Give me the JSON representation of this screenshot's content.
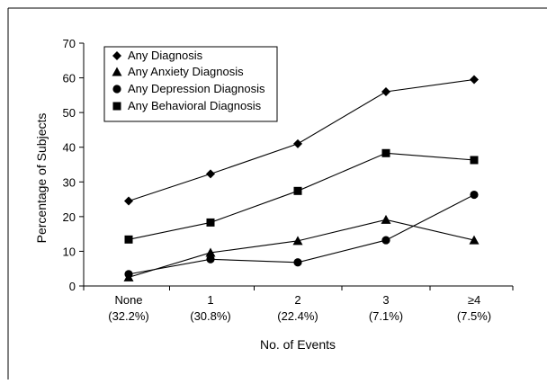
{
  "chart_data": {
    "type": "line",
    "title": "",
    "xlabel": "No. of Events",
    "ylabel": "Percentage of Subjects",
    "ylim": [
      0,
      70
    ],
    "yticks": [
      "0",
      "10",
      "20",
      "30",
      "40",
      "50",
      "60",
      "70"
    ],
    "categories": [
      {
        "name": "None",
        "pct": "(32.2%)"
      },
      {
        "name": "1",
        "pct": "(30.8%)"
      },
      {
        "name": "2",
        "pct": "(22.4%)"
      },
      {
        "name": "3",
        "pct": "(7.1%)"
      },
      {
        "name": "≥4",
        "pct": "(7.5%)"
      }
    ],
    "series": [
      {
        "name": "Any Diagnosis",
        "marker": "diamond",
        "values": [
          24.5,
          32.3,
          41,
          56,
          59.5
        ]
      },
      {
        "name": "Any Anxiety Diagnosis",
        "marker": "triangle",
        "values": [
          2.5,
          9.6,
          13,
          19.1,
          13.2
        ]
      },
      {
        "name": "Any Depression Diagnosis",
        "marker": "circle",
        "values": [
          3.4,
          7.7,
          6.8,
          13.2,
          26.3
        ]
      },
      {
        "name": "Any Behavioral Diagnosis",
        "marker": "square",
        "values": [
          13.4,
          18.3,
          27.4,
          38.3,
          36.3
        ]
      }
    ],
    "legend": "top-left",
    "grid": false,
    "colors": {
      "line": "#000000",
      "marker": "#000000"
    }
  }
}
